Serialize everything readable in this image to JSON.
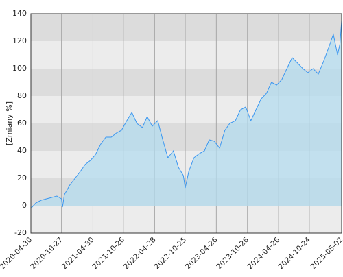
{
  "chart_data": {
    "type": "area",
    "y_label": "[Zmiany %]",
    "x": [
      "2020-04-30",
      "2020-05-29",
      "2020-06-30",
      "2020-07-31",
      "2020-08-31",
      "2020-09-30",
      "2020-10-27",
      "2020-11-02",
      "2020-11-13",
      "2020-12-15",
      "2021-01-15",
      "2021-02-15",
      "2021-03-15",
      "2021-04-15",
      "2021-05-14",
      "2021-06-15",
      "2021-07-15",
      "2021-08-16",
      "2021-09-15",
      "2021-10-15",
      "2021-11-15",
      "2021-12-15",
      "2022-01-14",
      "2022-02-15",
      "2022-03-15",
      "2022-04-14",
      "2022-05-16",
      "2022-06-15",
      "2022-07-15",
      "2022-08-16",
      "2022-09-15",
      "2022-10-14",
      "2022-10-25",
      "2022-11-15",
      "2022-12-15",
      "2023-01-16",
      "2023-02-15",
      "2023-03-15",
      "2023-04-14",
      "2023-05-15",
      "2023-06-15",
      "2023-07-14",
      "2023-08-16",
      "2023-09-15",
      "2023-10-16",
      "2023-11-15",
      "2023-12-15",
      "2024-01-15",
      "2024-02-15",
      "2024-03-15",
      "2024-04-15",
      "2024-05-15",
      "2024-06-14",
      "2024-07-15",
      "2024-08-16",
      "2024-09-16",
      "2024-10-15",
      "2024-11-15",
      "2024-12-16",
      "2025-01-15",
      "2025-02-14",
      "2025-03-14",
      "2025-04-08",
      "2025-04-22",
      "2025-05-02"
    ],
    "series": [
      {
        "color": "#3a96f0",
        "fill": "#b4dcef",
        "values": [
          -2,
          2,
          4,
          5,
          6,
          7,
          5,
          -1,
          8,
          15,
          20,
          25,
          30,
          33,
          37,
          45,
          50,
          50,
          53,
          55,
          62,
          68,
          60,
          57,
          65,
          58,
          62,
          48,
          35,
          40,
          28,
          22,
          13,
          25,
          35,
          38,
          40,
          48,
          47,
          42,
          55,
          60,
          62,
          70,
          72,
          62,
          70,
          78,
          82,
          90,
          88,
          92,
          100,
          108,
          104,
          100,
          97,
          100,
          96,
          105,
          115,
          125,
          110,
          118,
          135
        ]
      }
    ],
    "xlim": [
      "2020-04-30",
      "2025-05-02"
    ],
    "xticks": [
      "2020-04-30",
      "2020-10-27",
      "2021-04-30",
      "2021-10-26",
      "2022-04-28",
      "2022-10-25",
      "2023-04-26",
      "2023-10-26",
      "2024-04-26",
      "2024-10-24",
      "2025-05-02"
    ],
    "ylim": [
      -20,
      140
    ],
    "yticks": [
      -20,
      0,
      20,
      40,
      60,
      80,
      100,
      120,
      140
    ],
    "grid": true
  }
}
